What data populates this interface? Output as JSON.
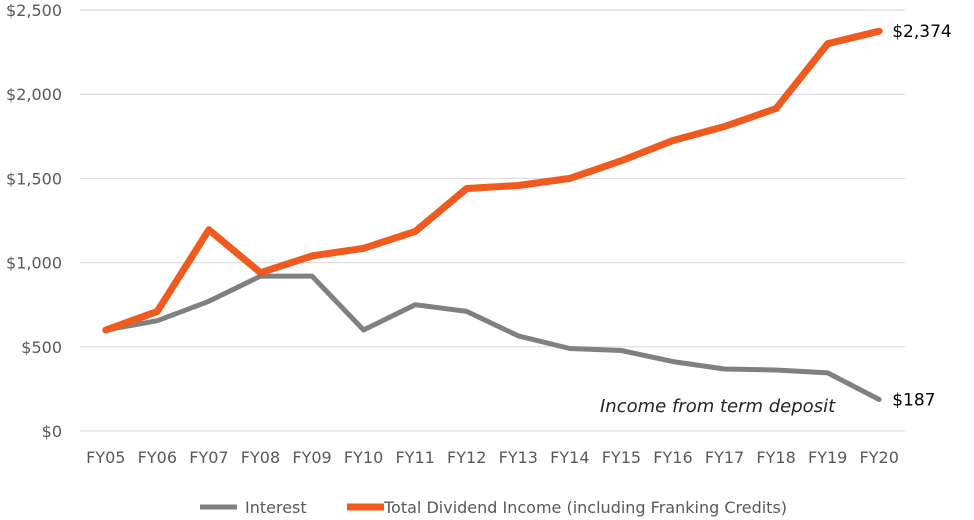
{
  "chart_data": {
    "type": "line",
    "categories": [
      "FY05",
      "FY06",
      "FY07",
      "FY08",
      "FY09",
      "FY10",
      "FY11",
      "FY12",
      "FY13",
      "FY14",
      "FY15",
      "FY16",
      "FY17",
      "FY18",
      "FY19",
      "FY20"
    ],
    "ylim": [
      0,
      2500
    ],
    "yticks": [
      0,
      500,
      1000,
      1500,
      2000,
      2500
    ],
    "ytick_labels": [
      "$0",
      "$500",
      "$1,000",
      "$1,500",
      "$2,000",
      "$2,500"
    ],
    "grid": true,
    "legend_position": "bottom",
    "series": [
      {
        "name": "Interest",
        "color": "#808080",
        "values": [
          600,
          655,
          770,
          920,
          920,
          600,
          750,
          710,
          565,
          490,
          478,
          412,
          368,
          362,
          345,
          187
        ],
        "end_label": "$187"
      },
      {
        "name": "Total Dividend Income (including Franking Credits)",
        "color": "#f05a1e",
        "values": [
          600,
          710,
          1195,
          940,
          1040,
          1085,
          1185,
          1440,
          1458,
          1500,
          1605,
          1725,
          1808,
          1915,
          2300,
          2374
        ],
        "end_label": "$2,374"
      }
    ],
    "annotation": "Income from term deposit"
  }
}
